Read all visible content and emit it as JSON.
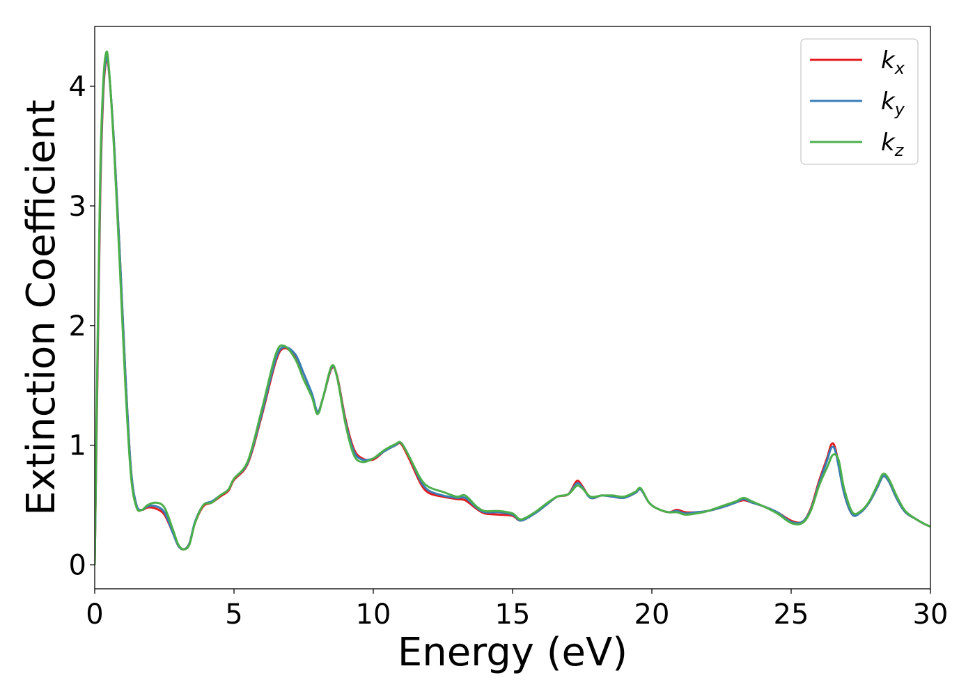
{
  "chart_data": {
    "type": "line",
    "title": "",
    "xlabel": "Energy (eV)",
    "ylabel": "Extinction Coefficient",
    "xlim": [
      0,
      30
    ],
    "ylim": [
      -0.2,
      4.5
    ],
    "xticks": [
      0,
      5,
      10,
      15,
      20,
      25,
      30
    ],
    "yticks": [
      0,
      1,
      2,
      3,
      4
    ],
    "grid": false,
    "legend_position": "top-right",
    "series": [
      {
        "name": "k_x",
        "legend_base": "k",
        "legend_sub": "x",
        "color": "#e41a1c",
        "points": [
          [
            0,
            0
          ],
          [
            0.1,
            1.6
          ],
          [
            0.2,
            3.1
          ],
          [
            0.3,
            3.9
          ],
          [
            0.4,
            4.2
          ],
          [
            0.5,
            4.15
          ],
          [
            0.7,
            3.5
          ],
          [
            0.9,
            2.6
          ],
          [
            1.1,
            1.6
          ],
          [
            1.3,
            0.8
          ],
          [
            1.5,
            0.5
          ],
          [
            1.7,
            0.46
          ],
          [
            1.9,
            0.48
          ],
          [
            2.2,
            0.47
          ],
          [
            2.5,
            0.42
          ],
          [
            2.8,
            0.27
          ],
          [
            3.0,
            0.16
          ],
          [
            3.2,
            0.13
          ],
          [
            3.4,
            0.18
          ],
          [
            3.6,
            0.35
          ],
          [
            3.9,
            0.49
          ],
          [
            4.2,
            0.52
          ],
          [
            4.5,
            0.57
          ],
          [
            4.8,
            0.62
          ],
          [
            5.0,
            0.71
          ],
          [
            5.5,
            0.85
          ],
          [
            6.0,
            1.25
          ],
          [
            6.5,
            1.7
          ],
          [
            6.8,
            1.81
          ],
          [
            7.2,
            1.74
          ],
          [
            7.5,
            1.6
          ],
          [
            7.8,
            1.42
          ],
          [
            8.0,
            1.28
          ],
          [
            8.2,
            1.4
          ],
          [
            8.5,
            1.64
          ],
          [
            8.7,
            1.58
          ],
          [
            9.0,
            1.22
          ],
          [
            9.3,
            0.97
          ],
          [
            9.6,
            0.89
          ],
          [
            10.0,
            0.88
          ],
          [
            10.4,
            0.95
          ],
          [
            10.8,
            1.0
          ],
          [
            11.0,
            1.01
          ],
          [
            11.3,
            0.88
          ],
          [
            11.7,
            0.68
          ],
          [
            12.0,
            0.6
          ],
          [
            12.5,
            0.57
          ],
          [
            13.0,
            0.55
          ],
          [
            13.3,
            0.54
          ],
          [
            13.7,
            0.47
          ],
          [
            14.0,
            0.43
          ],
          [
            14.5,
            0.42
          ],
          [
            15.0,
            0.41
          ],
          [
            15.3,
            0.37
          ],
          [
            15.8,
            0.43
          ],
          [
            16.2,
            0.5
          ],
          [
            16.6,
            0.57
          ],
          [
            17.0,
            0.59
          ],
          [
            17.3,
            0.7
          ],
          [
            17.5,
            0.66
          ],
          [
            17.8,
            0.56
          ],
          [
            18.2,
            0.58
          ],
          [
            18.6,
            0.57
          ],
          [
            19.0,
            0.56
          ],
          [
            19.4,
            0.6
          ],
          [
            19.6,
            0.63
          ],
          [
            19.9,
            0.52
          ],
          [
            20.2,
            0.47
          ],
          [
            20.6,
            0.44
          ],
          [
            20.9,
            0.46
          ],
          [
            21.2,
            0.44
          ],
          [
            21.6,
            0.44
          ],
          [
            22.0,
            0.45
          ],
          [
            22.5,
            0.48
          ],
          [
            23.0,
            0.52
          ],
          [
            23.3,
            0.54
          ],
          [
            23.6,
            0.52
          ],
          [
            24.0,
            0.49
          ],
          [
            24.5,
            0.44
          ],
          [
            25.0,
            0.37
          ],
          [
            25.4,
            0.36
          ],
          [
            25.7,
            0.47
          ],
          [
            26.0,
            0.7
          ],
          [
            26.3,
            0.9
          ],
          [
            26.45,
            1.01
          ],
          [
            26.6,
            0.96
          ],
          [
            26.9,
            0.6
          ],
          [
            27.2,
            0.42
          ],
          [
            27.5,
            0.44
          ],
          [
            27.8,
            0.52
          ],
          [
            28.1,
            0.65
          ],
          [
            28.3,
            0.74
          ],
          [
            28.5,
            0.7
          ],
          [
            28.8,
            0.55
          ],
          [
            29.1,
            0.44
          ],
          [
            29.5,
            0.38
          ],
          [
            29.8,
            0.34
          ],
          [
            30.0,
            0.32
          ]
        ]
      },
      {
        "name": "k_y",
        "legend_base": "k",
        "legend_sub": "y",
        "color": "#377eb8",
        "points": [
          [
            0,
            0
          ],
          [
            0.1,
            1.7
          ],
          [
            0.2,
            3.2
          ],
          [
            0.3,
            3.95
          ],
          [
            0.4,
            4.22
          ],
          [
            0.5,
            4.16
          ],
          [
            0.7,
            3.5
          ],
          [
            0.9,
            2.6
          ],
          [
            1.1,
            1.6
          ],
          [
            1.3,
            0.8
          ],
          [
            1.5,
            0.5
          ],
          [
            1.7,
            0.46
          ],
          [
            1.9,
            0.49
          ],
          [
            2.2,
            0.49
          ],
          [
            2.5,
            0.44
          ],
          [
            2.8,
            0.27
          ],
          [
            3.0,
            0.16
          ],
          [
            3.2,
            0.13
          ],
          [
            3.4,
            0.18
          ],
          [
            3.6,
            0.36
          ],
          [
            3.9,
            0.5
          ],
          [
            4.2,
            0.53
          ],
          [
            4.5,
            0.58
          ],
          [
            4.8,
            0.63
          ],
          [
            5.0,
            0.72
          ],
          [
            5.5,
            0.86
          ],
          [
            6.0,
            1.27
          ],
          [
            6.5,
            1.72
          ],
          [
            6.8,
            1.82
          ],
          [
            7.2,
            1.76
          ],
          [
            7.5,
            1.6
          ],
          [
            7.8,
            1.43
          ],
          [
            8.0,
            1.28
          ],
          [
            8.2,
            1.4
          ],
          [
            8.5,
            1.65
          ],
          [
            8.7,
            1.57
          ],
          [
            9.0,
            1.2
          ],
          [
            9.3,
            0.95
          ],
          [
            9.6,
            0.88
          ],
          [
            10.0,
            0.89
          ],
          [
            10.4,
            0.95
          ],
          [
            10.8,
            1.0
          ],
          [
            11.0,
            1.02
          ],
          [
            11.3,
            0.9
          ],
          [
            11.7,
            0.7
          ],
          [
            12.0,
            0.62
          ],
          [
            12.5,
            0.58
          ],
          [
            13.0,
            0.56
          ],
          [
            13.3,
            0.56
          ],
          [
            13.7,
            0.48
          ],
          [
            14.0,
            0.44
          ],
          [
            14.5,
            0.44
          ],
          [
            15.0,
            0.42
          ],
          [
            15.3,
            0.37
          ],
          [
            15.8,
            0.43
          ],
          [
            16.2,
            0.5
          ],
          [
            16.6,
            0.57
          ],
          [
            17.0,
            0.59
          ],
          [
            17.3,
            0.68
          ],
          [
            17.5,
            0.65
          ],
          [
            17.8,
            0.56
          ],
          [
            18.2,
            0.58
          ],
          [
            18.6,
            0.57
          ],
          [
            19.0,
            0.56
          ],
          [
            19.4,
            0.6
          ],
          [
            19.6,
            0.63
          ],
          [
            19.9,
            0.52
          ],
          [
            20.2,
            0.47
          ],
          [
            20.6,
            0.44
          ],
          [
            20.9,
            0.45
          ],
          [
            21.2,
            0.43
          ],
          [
            21.6,
            0.44
          ],
          [
            22.0,
            0.45
          ],
          [
            22.5,
            0.48
          ],
          [
            23.0,
            0.52
          ],
          [
            23.3,
            0.55
          ],
          [
            23.6,
            0.52
          ],
          [
            24.0,
            0.49
          ],
          [
            24.5,
            0.44
          ],
          [
            25.0,
            0.36
          ],
          [
            25.4,
            0.36
          ],
          [
            25.7,
            0.46
          ],
          [
            26.0,
            0.68
          ],
          [
            26.3,
            0.88
          ],
          [
            26.45,
            0.98
          ],
          [
            26.6,
            0.94
          ],
          [
            26.9,
            0.6
          ],
          [
            27.2,
            0.42
          ],
          [
            27.5,
            0.44
          ],
          [
            27.8,
            0.52
          ],
          [
            28.1,
            0.65
          ],
          [
            28.3,
            0.74
          ],
          [
            28.5,
            0.7
          ],
          [
            28.8,
            0.55
          ],
          [
            29.1,
            0.44
          ],
          [
            29.5,
            0.38
          ],
          [
            29.8,
            0.34
          ],
          [
            30.0,
            0.32
          ]
        ]
      },
      {
        "name": "k_z",
        "legend_base": "k",
        "legend_sub": "z",
        "color": "#4daf4a",
        "points": [
          [
            0,
            0
          ],
          [
            0.1,
            1.8
          ],
          [
            0.2,
            3.3
          ],
          [
            0.3,
            4.0
          ],
          [
            0.4,
            4.27
          ],
          [
            0.5,
            4.18
          ],
          [
            0.7,
            3.45
          ],
          [
            0.9,
            2.5
          ],
          [
            1.1,
            1.5
          ],
          [
            1.3,
            0.75
          ],
          [
            1.5,
            0.48
          ],
          [
            1.7,
            0.46
          ],
          [
            1.9,
            0.5
          ],
          [
            2.2,
            0.52
          ],
          [
            2.5,
            0.48
          ],
          [
            2.8,
            0.3
          ],
          [
            3.0,
            0.17
          ],
          [
            3.2,
            0.13
          ],
          [
            3.4,
            0.17
          ],
          [
            3.6,
            0.35
          ],
          [
            3.9,
            0.5
          ],
          [
            4.2,
            0.52
          ],
          [
            4.5,
            0.58
          ],
          [
            4.8,
            0.63
          ],
          [
            5.0,
            0.72
          ],
          [
            5.5,
            0.87
          ],
          [
            6.0,
            1.3
          ],
          [
            6.5,
            1.76
          ],
          [
            6.8,
            1.83
          ],
          [
            7.2,
            1.72
          ],
          [
            7.5,
            1.55
          ],
          [
            7.8,
            1.4
          ],
          [
            8.0,
            1.26
          ],
          [
            8.2,
            1.4
          ],
          [
            8.5,
            1.66
          ],
          [
            8.7,
            1.57
          ],
          [
            9.0,
            1.18
          ],
          [
            9.3,
            0.92
          ],
          [
            9.6,
            0.86
          ],
          [
            10.0,
            0.89
          ],
          [
            10.4,
            0.96
          ],
          [
            10.8,
            1.01
          ],
          [
            11.0,
            1.02
          ],
          [
            11.3,
            0.9
          ],
          [
            11.7,
            0.72
          ],
          [
            12.0,
            0.65
          ],
          [
            12.5,
            0.61
          ],
          [
            13.0,
            0.57
          ],
          [
            13.3,
            0.58
          ],
          [
            13.7,
            0.49
          ],
          [
            14.0,
            0.45
          ],
          [
            14.5,
            0.45
          ],
          [
            15.0,
            0.43
          ],
          [
            15.3,
            0.38
          ],
          [
            15.8,
            0.44
          ],
          [
            16.2,
            0.51
          ],
          [
            16.6,
            0.57
          ],
          [
            17.0,
            0.59
          ],
          [
            17.3,
            0.66
          ],
          [
            17.5,
            0.64
          ],
          [
            17.8,
            0.57
          ],
          [
            18.2,
            0.58
          ],
          [
            18.6,
            0.58
          ],
          [
            19.0,
            0.57
          ],
          [
            19.4,
            0.61
          ],
          [
            19.6,
            0.64
          ],
          [
            19.9,
            0.52
          ],
          [
            20.2,
            0.47
          ],
          [
            20.6,
            0.44
          ],
          [
            20.9,
            0.44
          ],
          [
            21.2,
            0.42
          ],
          [
            21.6,
            0.43
          ],
          [
            22.0,
            0.45
          ],
          [
            22.5,
            0.49
          ],
          [
            23.0,
            0.53
          ],
          [
            23.3,
            0.56
          ],
          [
            23.6,
            0.53
          ],
          [
            24.0,
            0.49
          ],
          [
            24.5,
            0.43
          ],
          [
            25.0,
            0.35
          ],
          [
            25.4,
            0.35
          ],
          [
            25.7,
            0.45
          ],
          [
            26.0,
            0.66
          ],
          [
            26.3,
            0.82
          ],
          [
            26.5,
            0.92
          ],
          [
            26.7,
            0.88
          ],
          [
            26.9,
            0.64
          ],
          [
            27.2,
            0.44
          ],
          [
            27.5,
            0.45
          ],
          [
            27.8,
            0.53
          ],
          [
            28.1,
            0.67
          ],
          [
            28.3,
            0.76
          ],
          [
            28.5,
            0.72
          ],
          [
            28.8,
            0.57
          ],
          [
            29.1,
            0.45
          ],
          [
            29.5,
            0.38
          ],
          [
            29.8,
            0.34
          ],
          [
            30.0,
            0.32
          ]
        ]
      }
    ]
  }
}
